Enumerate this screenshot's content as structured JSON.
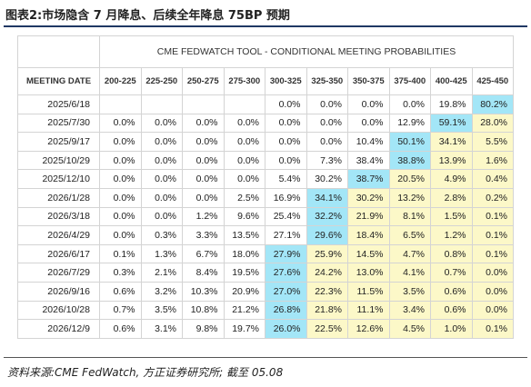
{
  "header": {
    "title": "图表2:市场隐含 7 月降息、后续全年降息 75BP 预期"
  },
  "table": {
    "caption": "CME FEDWATCH TOOL - CONDITIONAL MEETING PROBABILITIES",
    "columns": [
      "MEETING DATE",
      "200-225",
      "225-250",
      "250-275",
      "275-300",
      "300-325",
      "325-350",
      "350-375",
      "375-400",
      "400-425",
      "425-450"
    ],
    "rows": [
      [
        "2025/6/18",
        null,
        null,
        null,
        null,
        "0.0%",
        "0.0%",
        "0.0%",
        "0.0%",
        "19.8%",
        "80.2%"
      ],
      [
        "2025/7/30",
        "0.0%",
        "0.0%",
        "0.0%",
        "0.0%",
        "0.0%",
        "0.0%",
        "0.0%",
        "12.9%",
        "59.1%",
        "28.0%"
      ],
      [
        "2025/9/17",
        "0.0%",
        "0.0%",
        "0.0%",
        "0.0%",
        "0.0%",
        "0.0%",
        "10.4%",
        "50.1%",
        "34.1%",
        "5.5%"
      ],
      [
        "2025/10/29",
        "0.0%",
        "0.0%",
        "0.0%",
        "0.0%",
        "0.0%",
        "7.3%",
        "38.4%",
        "38.8%",
        "13.9%",
        "1.6%"
      ],
      [
        "2025/12/10",
        "0.0%",
        "0.0%",
        "0.0%",
        "0.0%",
        "5.4%",
        "30.2%",
        "38.7%",
        "20.5%",
        "4.9%",
        "0.4%"
      ],
      [
        "2026/1/28",
        "0.0%",
        "0.0%",
        "0.0%",
        "2.5%",
        "16.9%",
        "34.1%",
        "30.2%",
        "13.2%",
        "2.8%",
        "0.2%"
      ],
      [
        "2026/3/18",
        "0.0%",
        "0.0%",
        "1.2%",
        "9.6%",
        "25.4%",
        "32.2%",
        "21.9%",
        "8.1%",
        "1.5%",
        "0.1%"
      ],
      [
        "2026/4/29",
        "0.0%",
        "0.3%",
        "3.3%",
        "13.5%",
        "27.1%",
        "29.6%",
        "18.4%",
        "6.5%",
        "1.2%",
        "0.1%"
      ],
      [
        "2026/6/17",
        "0.1%",
        "1.3%",
        "6.7%",
        "18.0%",
        "27.9%",
        "25.9%",
        "14.5%",
        "4.7%",
        "0.8%",
        "0.1%"
      ],
      [
        "2026/7/29",
        "0.3%",
        "2.1%",
        "8.4%",
        "19.5%",
        "27.6%",
        "24.2%",
        "13.0%",
        "4.1%",
        "0.7%",
        "0.0%"
      ],
      [
        "2026/9/16",
        "0.6%",
        "3.2%",
        "10.3%",
        "20.9%",
        "27.0%",
        "22.3%",
        "11.5%",
        "3.5%",
        "0.6%",
        "0.0%"
      ],
      [
        "2026/10/28",
        "0.7%",
        "3.5%",
        "10.8%",
        "21.2%",
        "26.8%",
        "21.8%",
        "11.1%",
        "3.4%",
        "0.6%",
        "0.0%"
      ],
      [
        "2026/12/9",
        "0.6%",
        "3.1%",
        "9.8%",
        "19.7%",
        "26.0%",
        "22.5%",
        "12.6%",
        "4.5%",
        "1.0%",
        "0.1%"
      ]
    ]
  },
  "footer": {
    "source": "资料来源:CME FedWatch, 方正证券研究所; 截至 05.08"
  }
}
